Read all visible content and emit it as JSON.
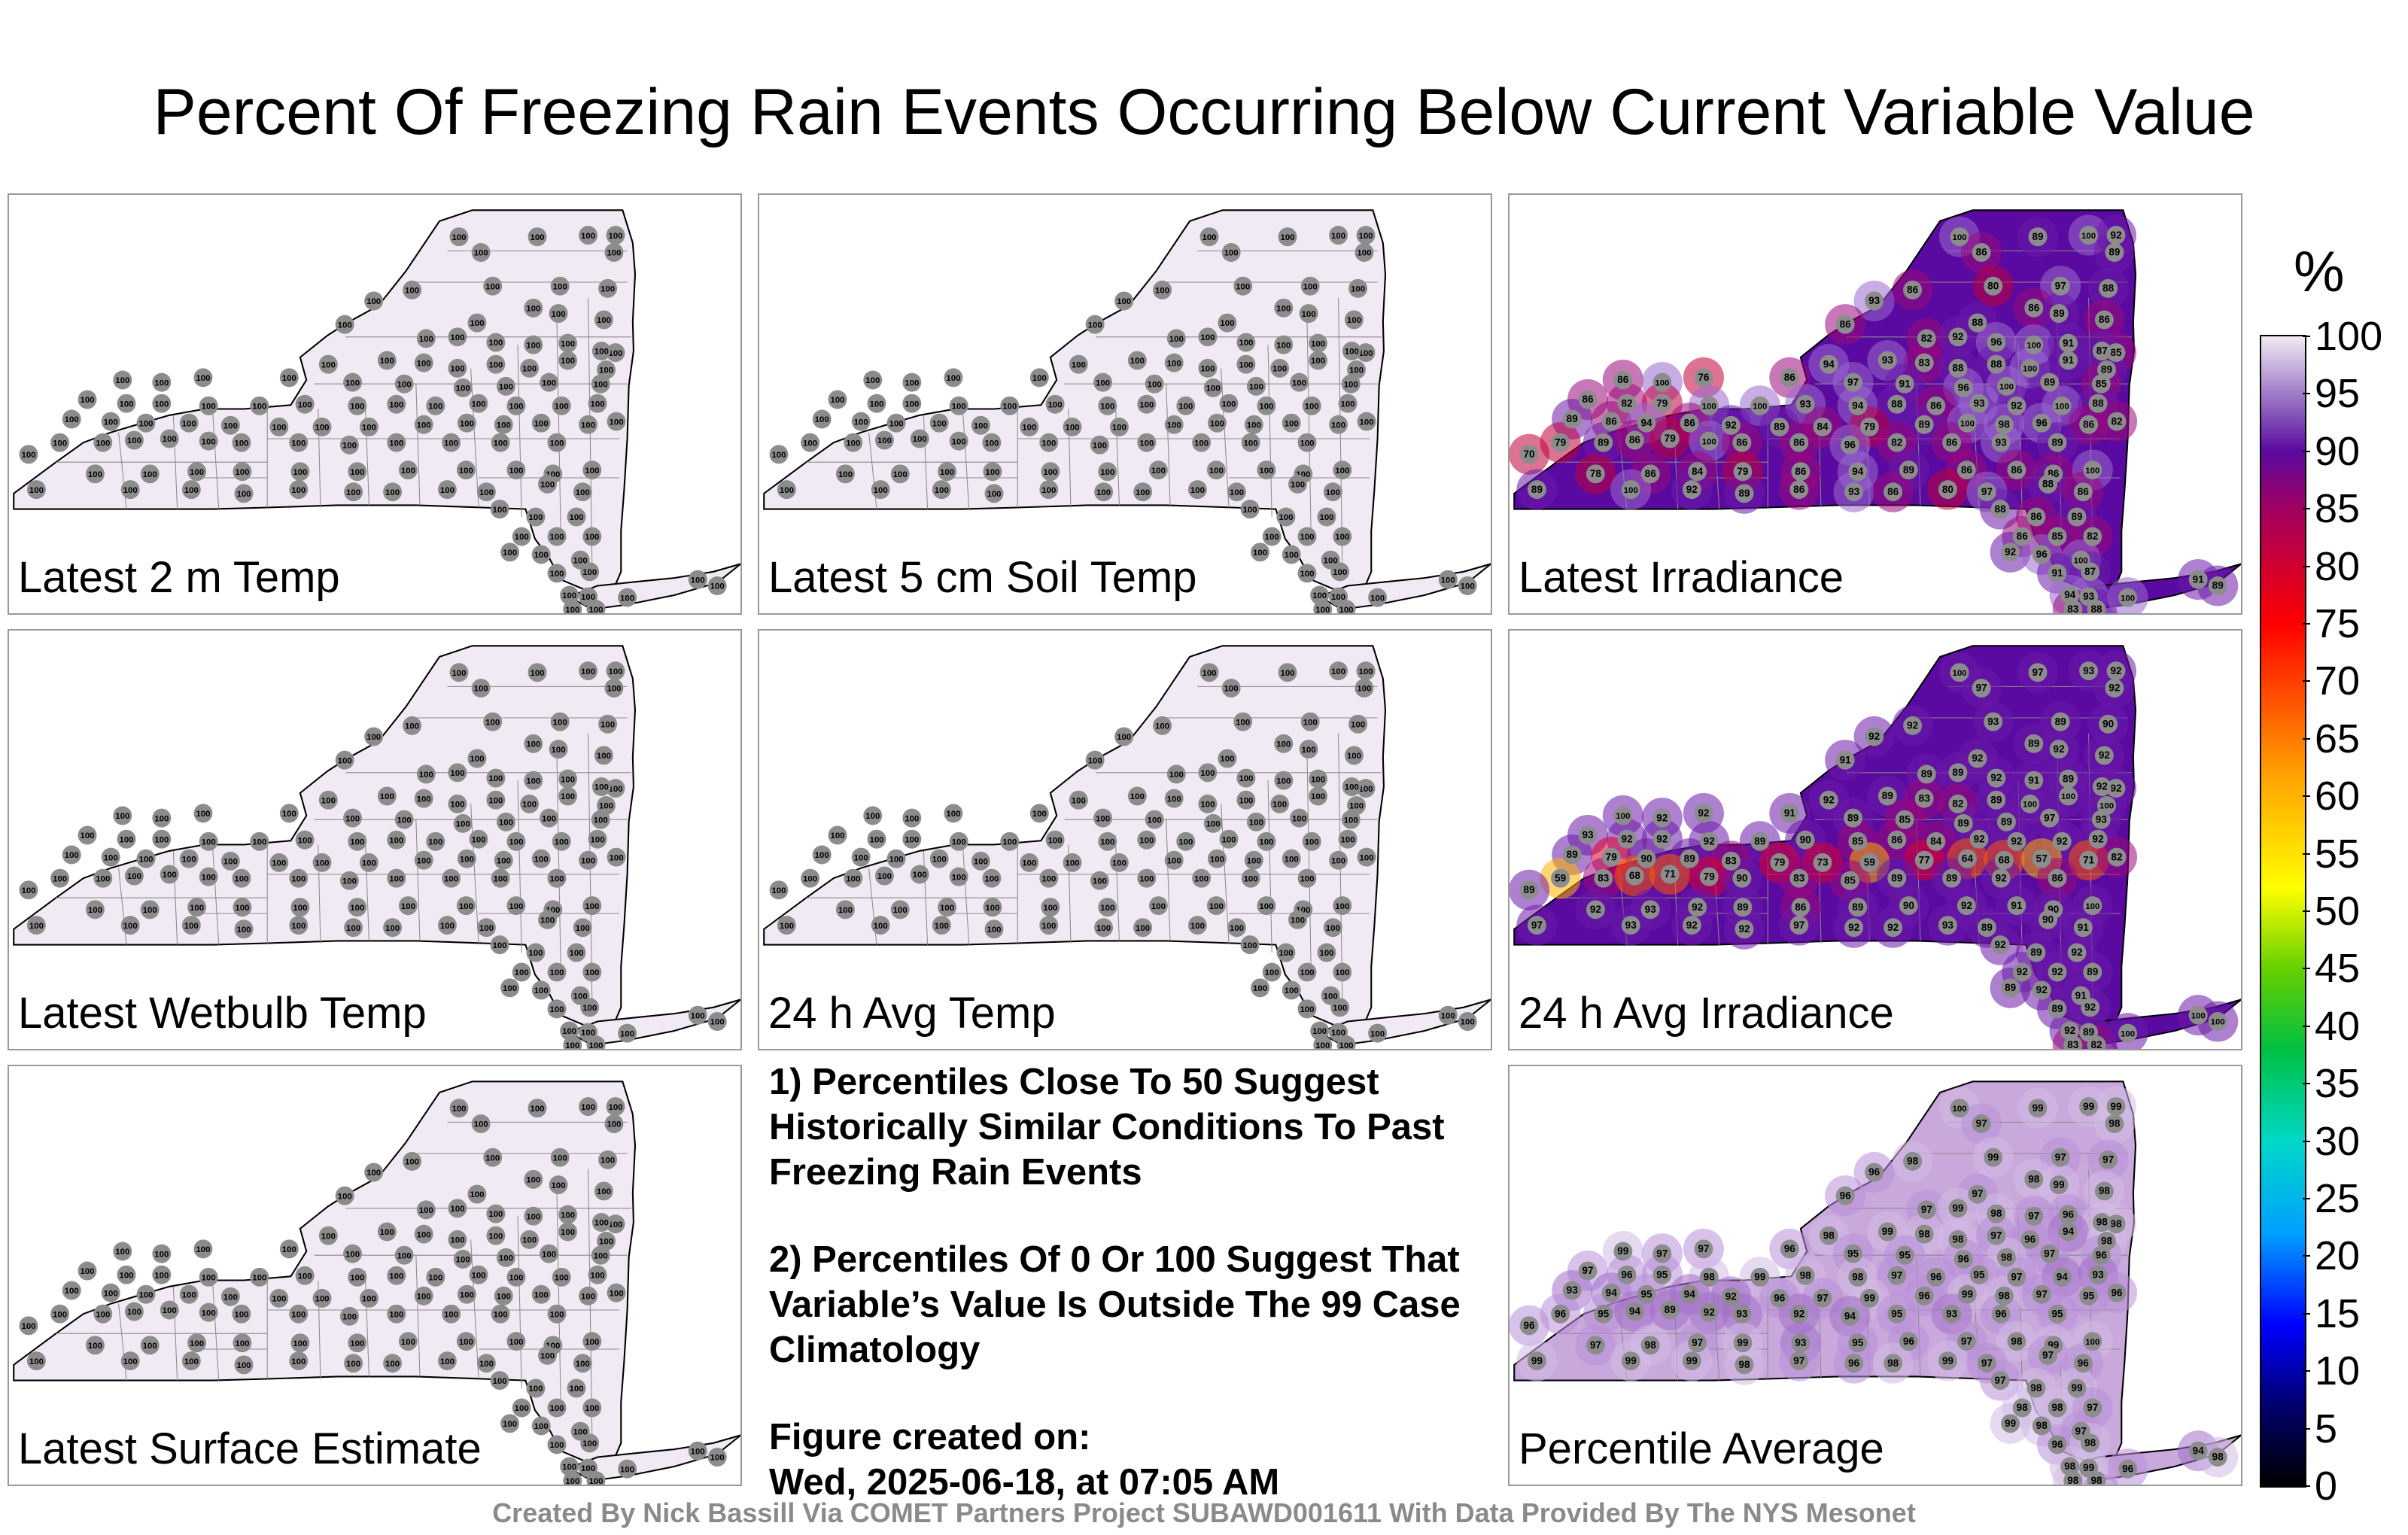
{
  "title": "Percent Of Freezing Rain Events Occurring Below Current Variable Value",
  "panels": [
    {
      "label": "Latest 2 m Temp",
      "fill": "#f1eaf4",
      "style": "uniform",
      "value": "100"
    },
    {
      "label": "Latest 5 cm Soil Temp",
      "fill": "#f1eaf4",
      "style": "uniform",
      "value": "100"
    },
    {
      "label": "Latest Irradiance",
      "fill": "#5a0aa0",
      "style": "irradiance",
      "values": [
        "100",
        "89",
        "100",
        "92",
        "89",
        "86",
        "93",
        "86",
        "80",
        "97",
        "88",
        "86",
        "88",
        "86",
        "89",
        "86",
        "85",
        "82",
        "92",
        "96",
        "100",
        "91",
        "87",
        "94",
        "93",
        "83",
        "88",
        "88",
        "100",
        "91",
        "89",
        "86",
        "100",
        "76",
        "86",
        "97",
        "91",
        "96",
        "100",
        "89",
        "85",
        "86",
        "82",
        "79",
        "100",
        "100",
        "93",
        "94",
        "88",
        "86",
        "93",
        "92",
        "100",
        "88",
        "89",
        "86",
        "94",
        "86",
        "92",
        "89",
        "84",
        "79",
        "89",
        "100",
        "98",
        "96",
        "86",
        "82",
        "79",
        "89",
        "86",
        "79",
        "100",
        "86",
        "86",
        "96",
        "82",
        "86",
        "93",
        "89",
        "70",
        "78",
        "86",
        "84",
        "79",
        "86",
        "94",
        "89",
        "86",
        "86",
        "86"
      ]
    },
    {
      "label": "Latest Wetbulb Temp",
      "fill": "#f1eaf4",
      "style": "uniform",
      "value": "100"
    },
    {
      "label": "24 h Avg Temp",
      "fill": "#f1eaf4",
      "style": "uniform",
      "value": "100"
    },
    {
      "label": "24 h Avg Irradiance",
      "fill": "#5a0aa0",
      "style": "avgirr",
      "values": [
        "100",
        "97",
        "93",
        "92",
        "92",
        "97",
        "92",
        "92",
        "93",
        "89",
        "90",
        "91",
        "92",
        "89",
        "92",
        "92",
        "92",
        "89",
        "89",
        "92",
        "91",
        "89",
        "92",
        "92",
        "89",
        "83",
        "82",
        "89",
        "100",
        "100",
        "100",
        "100",
        "92",
        "92",
        "91",
        "89",
        "85",
        "89",
        "89",
        "97",
        "93",
        "93",
        "92",
        "92",
        "92",
        "89",
        "90",
        "85",
        "86",
        "84",
        "92",
        "92",
        "92",
        "92",
        "89",
        "79",
        "90",
        "89",
        "83",
        "79",
        "73",
        "59",
        "77",
        "64",
        "68",
        "57",
        "71",
        "82",
        "59",
        "83",
        "68",
        "71",
        "79",
        "90",
        "83",
        "85",
        "89",
        "89",
        "92",
        "86",
        "89",
        "92",
        "93",
        "92",
        "89",
        "86",
        "89",
        "90",
        "92",
        "91",
        "90"
      ]
    },
    {
      "label": "Latest Surface Estimate",
      "fill": "#f1eaf4",
      "style": "uniform",
      "value": "100"
    },
    {
      "label": "Percentile Average",
      "fill": "#c9a8dc",
      "style": "average",
      "values": [
        "100",
        "99",
        "99",
        "99",
        "98",
        "97",
        "96",
        "98",
        "99",
        "97",
        "97",
        "96",
        "97",
        "98",
        "99",
        "98",
        "98",
        "97",
        "99",
        "98",
        "97",
        "96",
        "98",
        "98",
        "99",
        "98",
        "98",
        "97",
        "96",
        "94",
        "98",
        "99",
        "97",
        "97",
        "96",
        "95",
        "95",
        "96",
        "98",
        "97",
        "96",
        "97",
        "96",
        "95",
        "98",
        "99",
        "98",
        "98",
        "97",
        "96",
        "95",
        "97",
        "94",
        "93",
        "93",
        "94",
        "95",
        "94",
        "92",
        "96",
        "97",
        "99",
        "96",
        "99",
        "98",
        "97",
        "95",
        "96",
        "96",
        "95",
        "94",
        "89",
        "92",
        "93",
        "92",
        "94",
        "95",
        "93",
        "96",
        "95",
        "96",
        "97",
        "98",
        "97",
        "99",
        "93",
        "95",
        "96",
        "97",
        "98",
        "99"
      ]
    }
  ],
  "notes": {
    "note1": "1) Percentiles Close To 50 Suggest Historically Similar Conditions To Past Freezing Rain Events",
    "note2": "2) Percentiles Of 0 Or 100 Suggest That Variable’s Value Is Outside The 99 Case Climatology",
    "created_label": "Figure created on:",
    "created_value": "Wed, 2025-06-18, at 07:05 AM"
  },
  "credit": "Created By Nick Bassill Via COMET Partners Project SUBAWD001611 With Data Provided By The NYS Mesonet",
  "colorbar": {
    "unit": "%",
    "ticks": [
      "0",
      "5",
      "10",
      "15",
      "20",
      "25",
      "30",
      "35",
      "40",
      "45",
      "50",
      "55",
      "60",
      "65",
      "70",
      "75",
      "80",
      "85",
      "90",
      "95",
      "100"
    ],
    "stops": [
      {
        "v": 0,
        "c": "#000000"
      },
      {
        "v": 7,
        "c": "#00006e"
      },
      {
        "v": 14,
        "c": "#0000ff"
      },
      {
        "v": 22,
        "c": "#00a0ff"
      },
      {
        "v": 30,
        "c": "#00d8c8"
      },
      {
        "v": 38,
        "c": "#00c040"
      },
      {
        "v": 45,
        "c": "#66d000"
      },
      {
        "v": 52,
        "c": "#ffff00"
      },
      {
        "v": 62,
        "c": "#ffa000"
      },
      {
        "v": 75,
        "c": "#ff0000"
      },
      {
        "v": 85,
        "c": "#a00060"
      },
      {
        "v": 90,
        "c": "#5a0aa0"
      },
      {
        "v": 95,
        "c": "#a07cc8"
      },
      {
        "v": 100,
        "c": "#f1eaf4"
      }
    ]
  }
}
